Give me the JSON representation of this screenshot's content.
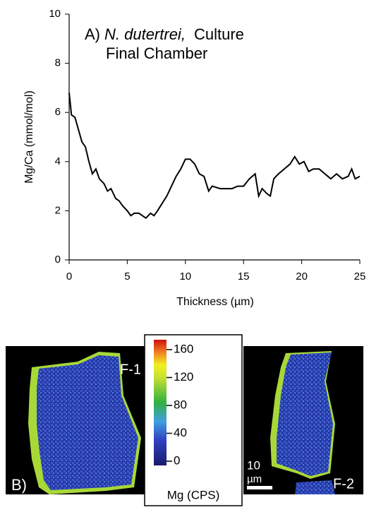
{
  "chart_data": {
    "type": "line",
    "title": {
      "label": "A)",
      "species": "N. dutertrei,",
      "rest": "Culture",
      "line2": "Final Chamber"
    },
    "x_label": "Thickness (µm)",
    "y_label": "Mg/Ca (mmol/mol)",
    "xlim": [
      0,
      25
    ],
    "xticks": [
      0,
      5,
      10,
      15,
      20,
      25
    ],
    "ylim": [
      0,
      10
    ],
    "yticks": [
      0,
      2,
      4,
      6,
      8,
      10
    ],
    "color": "#000000",
    "x": [
      0,
      0.2,
      0.5,
      0.8,
      1.1,
      1.4,
      1.7,
      2.0,
      2.3,
      2.6,
      3.0,
      3.3,
      3.6,
      4.0,
      4.3,
      4.6,
      5.0,
      5.3,
      5.6,
      6.0,
      6.3,
      6.6,
      7.0,
      7.3,
      7.6,
      8.0,
      8.4,
      8.8,
      9.2,
      9.6,
      10.0,
      10.4,
      10.8,
      11.2,
      11.6,
      12.0,
      12.3,
      13.0,
      13.5,
      14.0,
      14.5,
      15.0,
      15.5,
      16.0,
      16.3,
      16.6,
      17.0,
      17.3,
      17.6,
      18.0,
      18.5,
      19.0,
      19.4,
      19.8,
      20.2,
      20.6,
      21.0,
      21.5,
      22.0,
      22.5,
      23.0,
      23.5,
      24.0,
      24.3,
      24.6,
      25.0
    ],
    "values": [
      6.8,
      5.9,
      5.8,
      5.3,
      4.8,
      4.6,
      4.0,
      3.5,
      3.7,
      3.3,
      3.1,
      2.8,
      2.9,
      2.5,
      2.4,
      2.2,
      2.0,
      1.8,
      1.9,
      1.9,
      1.8,
      1.7,
      1.9,
      1.8,
      2.0,
      2.3,
      2.6,
      3.0,
      3.4,
      3.7,
      4.1,
      4.1,
      3.9,
      3.5,
      3.4,
      2.8,
      3.0,
      2.9,
      2.9,
      2.9,
      3.0,
      3.0,
      3.3,
      3.5,
      2.6,
      2.9,
      2.7,
      2.6,
      3.3,
      3.5,
      3.7,
      3.9,
      4.2,
      3.9,
      4.0,
      3.6,
      3.7,
      3.7,
      3.5,
      3.3,
      3.5,
      3.3,
      3.4,
      3.7,
      3.3,
      3.4
    ]
  },
  "panel_b": {
    "label": "B)",
    "left_label": "F-1",
    "right_label": "F-2",
    "scale_bar": {
      "value": "10",
      "unit": "µm"
    },
    "colorbar": {
      "label": "Mg (CPS)",
      "lim": [
        0,
        160
      ],
      "ticks": [
        0,
        40,
        80,
        120,
        160
      ]
    }
  }
}
